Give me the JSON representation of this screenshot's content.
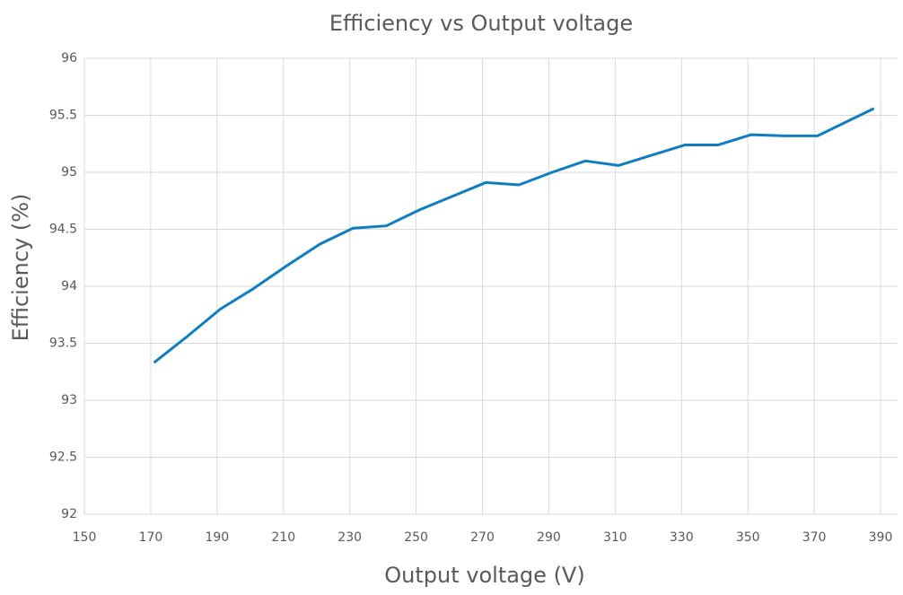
{
  "chart_data": {
    "type": "line",
    "title": "Efficiency vs Output voltage",
    "x_label": "Output voltage (V)",
    "y_label": "Efficiency (%)",
    "x": [
      171,
      181,
      191,
      201,
      211,
      221,
      231,
      241,
      251,
      261,
      271,
      281,
      291,
      301,
      311,
      321,
      331,
      341,
      351,
      361,
      371,
      388
    ],
    "series": [
      {
        "name": "Efficiency",
        "color": "#0e7dc2",
        "values": [
          93.33,
          93.56,
          93.8,
          93.98,
          94.18,
          94.37,
          94.51,
          94.53,
          94.67,
          94.79,
          94.91,
          94.89,
          95.0,
          95.1,
          95.06,
          95.15,
          95.24,
          95.24,
          95.33,
          95.32,
          95.32,
          95.56
        ]
      }
    ],
    "xlim": [
      150,
      395
    ],
    "xticks": [
      150,
      170,
      190,
      210,
      230,
      250,
      270,
      290,
      310,
      330,
      350,
      370,
      390
    ],
    "ylim": [
      92,
      96
    ],
    "yticks": [
      92,
      92.5,
      93,
      93.5,
      94,
      94.5,
      95,
      95.5,
      96
    ],
    "grid": true
  }
}
